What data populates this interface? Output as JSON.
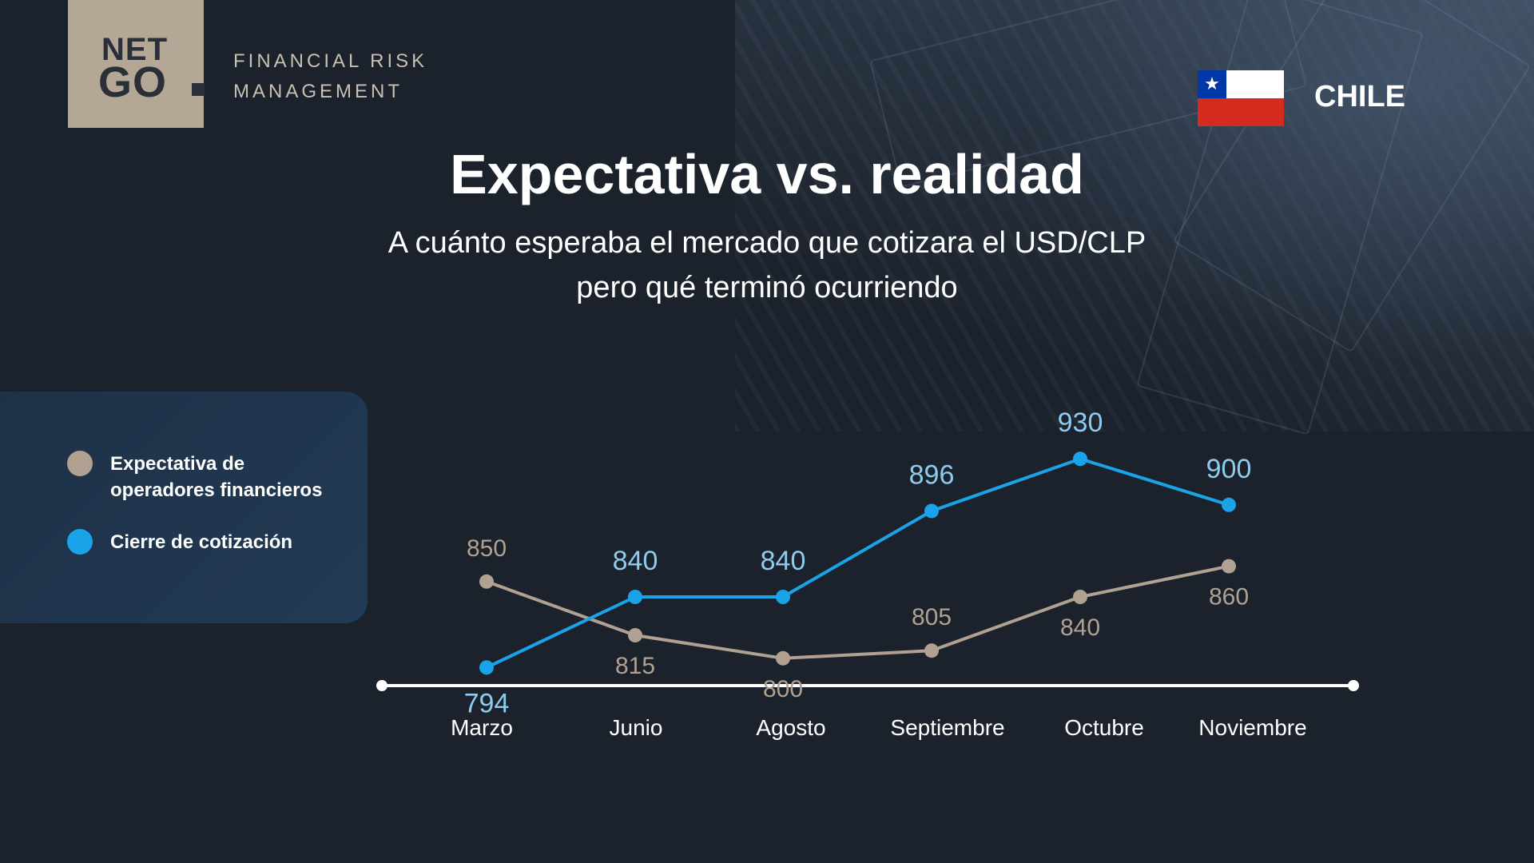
{
  "brand": {
    "logo_line1": "NET",
    "logo_line2": "GO",
    "tagline_line1": "FINANCIAL RISK",
    "tagline_line2": "MANAGEMENT"
  },
  "country": "CHILE",
  "title": "Expectativa vs. realidad",
  "subtitle_line1": "A cuánto esperaba el mercado que cotizara el USD/CLP",
  "subtitle_line2": "pero qué terminó ocurriendo",
  "colors": {
    "expectation": "#b0a193",
    "actual": "#1aa3e8",
    "actual_label": "#8ecbef",
    "expectation_label": "#b0a193",
    "axis": "#ffffff"
  },
  "legend": [
    {
      "label": "Expectativa de operadores financieros",
      "color": "#b0a193"
    },
    {
      "label": "Cierre de cotización",
      "color": "#1aa3e8"
    }
  ],
  "chart_data": {
    "type": "line",
    "categories": [
      "Marzo",
      "Junio",
      "Agosto",
      "Septiembre",
      "Octubre",
      "Noviembre"
    ],
    "series": [
      {
        "name": "Expectativa de operadores financieros",
        "values": [
          850,
          815,
          800,
          805,
          840,
          860
        ]
      },
      {
        "name": "Cierre de cotización",
        "values": [
          794,
          840,
          840,
          896,
          930,
          900
        ]
      }
    ],
    "grid": false,
    "legend_position": "left"
  }
}
